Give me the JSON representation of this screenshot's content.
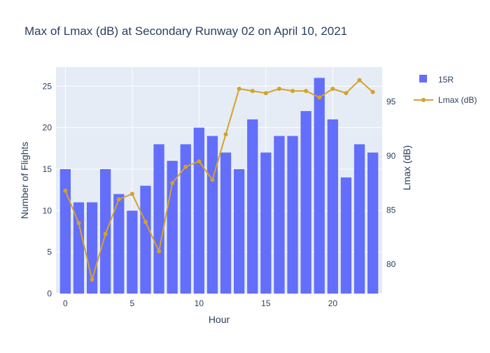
{
  "chart_data": {
    "type": "bar",
    "title": "Max of Lmax (dB) at Secondary Runway 02 on April 10, 2021",
    "xlabel": "Hour",
    "ylabel": "Number of Flights",
    "y2label": "Lmax (dB)",
    "x": [
      0,
      1,
      2,
      3,
      4,
      5,
      6,
      7,
      8,
      9,
      10,
      11,
      12,
      13,
      14,
      15,
      16,
      17,
      18,
      19,
      20,
      21,
      22,
      23
    ],
    "xticks": [
      0,
      5,
      10,
      15,
      20
    ],
    "xlim": [
      -0.7,
      23.7
    ],
    "ylim": [
      0,
      27.3
    ],
    "yticks": [
      0,
      5,
      10,
      15,
      20,
      25
    ],
    "y2lim": [
      77.3,
      98.2
    ],
    "y2ticks": [
      80,
      85,
      90,
      95
    ],
    "grid": true,
    "legend_position": "top-right",
    "series": [
      {
        "name": "15R",
        "type": "bar",
        "axis": "y",
        "color": "#636efa",
        "values": [
          15,
          11,
          11,
          15,
          12,
          10,
          13,
          18,
          16,
          18,
          20,
          19,
          17,
          15,
          21,
          17,
          19,
          19,
          22,
          26,
          21,
          14,
          18,
          17
        ]
      },
      {
        "name": "Lmax (dB)",
        "type": "line",
        "axis": "y2",
        "color": "#d4a22a",
        "values": [
          86.8,
          83.8,
          78.6,
          82.8,
          86.0,
          86.5,
          83.9,
          81.2,
          87.5,
          89.0,
          89.5,
          87.8,
          92.0,
          96.2,
          96.0,
          95.8,
          96.2,
          96.0,
          96.0,
          95.4,
          96.2,
          95.8,
          97.0,
          95.9
        ]
      }
    ]
  }
}
